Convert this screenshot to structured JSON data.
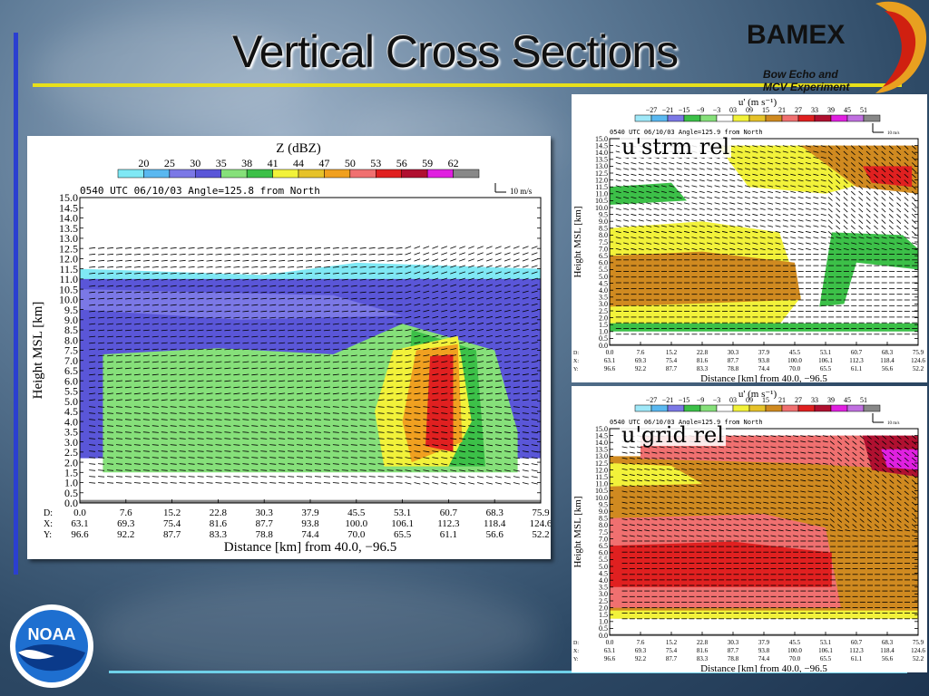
{
  "slide": {
    "title": "Vertical Cross Sections",
    "logo_text": "BAMEX",
    "logo_subtitle_1": "Bow Echo and",
    "logo_subtitle_2": "MCV Experiment",
    "noaa_text": "NOAA"
  },
  "colors": {
    "title_rule": "#e8e01a",
    "left_bar": "#2b3fd0",
    "bottom_rule": "#6fd0e8"
  },
  "chart_data": [
    {
      "type": "heatmap",
      "title": "Z (dBZ)",
      "header": "0540 UTC  06/10/03  Angle=125.8 from North",
      "vector_scale": "10 m/s",
      "ylabel": "Height MSL [km]",
      "xlabel": "Distance [km] from 40.0, −96.5",
      "colorbar_labels": [
        "20",
        "25",
        "30",
        "35",
        "38",
        "41",
        "44",
        "47",
        "50",
        "53",
        "56",
        "59",
        "62"
      ],
      "colorbar_colors": [
        "#7fe8f4",
        "#5ab8f0",
        "#7b78e6",
        "#5a56d8",
        "#86e07a",
        "#3cc048",
        "#f2f23a",
        "#e6c22a",
        "#f0a020",
        "#f07070",
        "#e02020",
        "#b01030",
        "#e020e0",
        "#888888"
      ],
      "ylim": [
        0.0,
        15.0
      ],
      "yticks": [
        "0.0",
        "0.5",
        "1.0",
        "1.5",
        "2.0",
        "2.5",
        "3.0",
        "3.5",
        "4.0",
        "4.5",
        "5.0",
        "5.5",
        "6.0",
        "6.5",
        "7.0",
        "7.5",
        "8.0",
        "8.5",
        "9.0",
        "9.5",
        "10.0",
        "10.5",
        "11.0",
        "11.5",
        "12.0",
        "12.5",
        "13.0",
        "13.5",
        "14.0",
        "14.5",
        "15.0"
      ],
      "xtick_rows": {
        "D": [
          "0.0",
          "7.6",
          "15.2",
          "22.8",
          "30.3",
          "37.9",
          "45.5",
          "53.1",
          "60.7",
          "68.3",
          "75.9"
        ],
        "X": [
          "63.1",
          "69.3",
          "75.4",
          "81.6",
          "87.7",
          "93.8",
          "100.0",
          "106.1",
          "112.3",
          "118.4",
          "124.6"
        ],
        "Y": [
          "96.6",
          "92.2",
          "87.7",
          "83.3",
          "78.8",
          "74.4",
          "70.0",
          "65.5",
          "61.1",
          "56.6",
          "52.2"
        ]
      }
    },
    {
      "type": "heatmap",
      "label": "u'strm rel",
      "title": "u' (m s⁻¹)",
      "header": "0540 UTC  06/10/03  Angle=125.9 from North",
      "vector_scale": "10 m/s",
      "ylabel": "Height MSL [km]",
      "xlabel": "Distance [km] from 40.0, −96.5",
      "colorbar_labels": [
        "−27",
        "−21",
        "−15",
        "−9",
        "−3",
        "03",
        "09",
        "15",
        "21",
        "27",
        "33",
        "39",
        "45",
        "51"
      ],
      "colorbar_colors": [
        "#9fe8f8",
        "#5ab8f0",
        "#7b78e6",
        "#3cc048",
        "#86e07a",
        "#ffffff",
        "#f2f23a",
        "#e6c22a",
        "#d08a20",
        "#f07070",
        "#e02020",
        "#b01030",
        "#e020e0",
        "#c070e0",
        "#888888"
      ],
      "ylim": [
        0.0,
        15.0
      ],
      "xtick_rows": {
        "D": [
          "0.0",
          "7.6",
          "15.2",
          "22.8",
          "30.3",
          "37.9",
          "45.5",
          "53.1",
          "60.7",
          "68.3",
          "75.9"
        ],
        "X": [
          "63.1",
          "69.3",
          "75.4",
          "81.6",
          "87.7",
          "93.8",
          "100.0",
          "106.1",
          "112.3",
          "118.4",
          "124.6"
        ],
        "Y": [
          "96.6",
          "92.2",
          "87.7",
          "83.3",
          "78.8",
          "74.4",
          "70.0",
          "65.5",
          "61.1",
          "56.6",
          "52.2"
        ]
      }
    },
    {
      "type": "heatmap",
      "label": "u'grid rel",
      "title": "u' (m s⁻¹)",
      "header": "0540 UTC  06/10/03  Angle=125.9 from North",
      "vector_scale": "10 m/s",
      "ylabel": "Height MSL [km]",
      "xlabel": "Distance [km] from 40.0, −96.5",
      "colorbar_labels": [
        "−27",
        "−21",
        "−15",
        "−9",
        "−3",
        "03",
        "09",
        "15",
        "21",
        "27",
        "33",
        "39",
        "45",
        "51"
      ],
      "colorbar_colors": [
        "#9fe8f8",
        "#5ab8f0",
        "#7b78e6",
        "#3cc048",
        "#86e07a",
        "#ffffff",
        "#f2f23a",
        "#e6c22a",
        "#d08a20",
        "#f07070",
        "#e02020",
        "#b01030",
        "#e020e0",
        "#c070e0",
        "#888888"
      ],
      "ylim": [
        0.0,
        15.0
      ],
      "xtick_rows": {
        "D": [
          "0.0",
          "7.6",
          "15.2",
          "22.8",
          "30.3",
          "37.9",
          "45.5",
          "53.1",
          "60.7",
          "68.3",
          "75.9"
        ],
        "X": [
          "63.1",
          "69.3",
          "75.4",
          "81.6",
          "87.7",
          "93.8",
          "100.0",
          "106.1",
          "112.3",
          "118.4",
          "124.6"
        ],
        "Y": [
          "96.6",
          "92.2",
          "87.7",
          "83.3",
          "78.8",
          "74.4",
          "70.0",
          "65.5",
          "61.1",
          "56.6",
          "52.2"
        ]
      }
    }
  ]
}
